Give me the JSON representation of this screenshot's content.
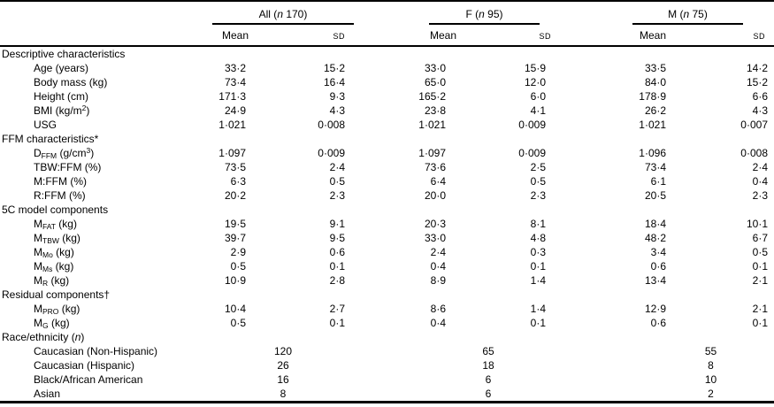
{
  "table": {
    "groups": [
      {
        "parts": [
          {
            "t": "All ("
          },
          {
            "t": "n",
            "style": "i"
          },
          {
            "t": " 170)"
          }
        ]
      },
      {
        "parts": [
          {
            "t": "F ("
          },
          {
            "t": "n",
            "style": "i"
          },
          {
            "t": " 95)"
          }
        ]
      },
      {
        "parts": [
          {
            "t": "M ("
          },
          {
            "t": "n",
            "style": "i"
          },
          {
            "t": " 75)"
          }
        ]
      }
    ],
    "subheaders": {
      "mean": "Mean",
      "sd": "SD"
    },
    "rows": [
      {
        "type": "section",
        "label": "Descriptive characteristics"
      },
      {
        "type": "data",
        "label": "Age (years)",
        "values": [
          "33·2",
          "15·2",
          "33·0",
          "15·9",
          "33·5",
          "14·2"
        ]
      },
      {
        "type": "data",
        "label": "Body mass (kg)",
        "values": [
          "73·4",
          "16·4",
          "65·0",
          "12·0",
          "84·0",
          "15·2"
        ]
      },
      {
        "type": "data",
        "label": "Height (cm)",
        "values": [
          "171·3",
          "9·3",
          "165·2",
          "6·0",
          "178·9",
          "6·6"
        ]
      },
      {
        "type": "data",
        "parts": [
          {
            "t": "BMI (kg/m"
          },
          {
            "t": "2",
            "style": "sup"
          },
          {
            "t": ")"
          }
        ],
        "values": [
          "24·9",
          "4·3",
          "23·8",
          "4·1",
          "26·2",
          "4·3"
        ]
      },
      {
        "type": "data",
        "label": "USG",
        "values": [
          "1·021",
          "0·008",
          "1·021",
          "0·009",
          "1·021",
          "0·007"
        ]
      },
      {
        "type": "section",
        "label": "FFM characteristics*"
      },
      {
        "type": "data",
        "parts": [
          {
            "t": "D"
          },
          {
            "t": "FFM",
            "style": "sub"
          },
          {
            "t": " (g/cm"
          },
          {
            "t": "3",
            "style": "sup"
          },
          {
            "t": ")"
          }
        ],
        "values": [
          "1·097",
          "0·009",
          "1·097",
          "0·009",
          "1·096",
          "0·008"
        ]
      },
      {
        "type": "data",
        "label": "TBW:FFM (%)",
        "values": [
          "73·5",
          "2·4",
          "73·6",
          "2·5",
          "73·4",
          "2·4"
        ]
      },
      {
        "type": "data",
        "label": "M:FFM (%)",
        "values": [
          "6·3",
          "0·5",
          "6·4",
          "0·5",
          "6·1",
          "0·4"
        ]
      },
      {
        "type": "data",
        "label": "R:FFM (%)",
        "values": [
          "20·2",
          "2·3",
          "20·0",
          "2·3",
          "20·5",
          "2·3"
        ]
      },
      {
        "type": "section",
        "label": "5C model components"
      },
      {
        "type": "data",
        "parts": [
          {
            "t": "M"
          },
          {
            "t": "FAT",
            "style": "sub"
          },
          {
            "t": " (kg)"
          }
        ],
        "values": [
          "19·5",
          "9·1",
          "20·3",
          "8·1",
          "18·4",
          "10·1"
        ]
      },
      {
        "type": "data",
        "parts": [
          {
            "t": "M"
          },
          {
            "t": "TBW",
            "style": "sub"
          },
          {
            "t": " (kg)"
          }
        ],
        "values": [
          "39·7",
          "9·5",
          "33·0",
          "4·8",
          "48·2",
          "6·7"
        ]
      },
      {
        "type": "data",
        "parts": [
          {
            "t": "M"
          },
          {
            "t": "Mo",
            "style": "sub"
          },
          {
            "t": " (kg)"
          }
        ],
        "values": [
          "2·9",
          "0·6",
          "2·4",
          "0·3",
          "3·4",
          "0·5"
        ]
      },
      {
        "type": "data",
        "parts": [
          {
            "t": "M"
          },
          {
            "t": "Ms",
            "style": "sub"
          },
          {
            "t": " (kg)"
          }
        ],
        "values": [
          "0·5",
          "0·1",
          "0·4",
          "0·1",
          "0·6",
          "0·1"
        ]
      },
      {
        "type": "data",
        "parts": [
          {
            "t": "M"
          },
          {
            "t": "R",
            "style": "sub"
          },
          {
            "t": " (kg)"
          }
        ],
        "values": [
          "10·9",
          "2·8",
          "8·9",
          "1·4",
          "13·4",
          "2·1"
        ]
      },
      {
        "type": "section",
        "label": "Residual components†"
      },
      {
        "type": "data",
        "parts": [
          {
            "t": "M"
          },
          {
            "t": "PRO",
            "style": "sub"
          },
          {
            "t": " (kg)"
          }
        ],
        "values": [
          "10·4",
          "2·7",
          "8·6",
          "1·4",
          "12·9",
          "2·1"
        ]
      },
      {
        "type": "data",
        "parts": [
          {
            "t": "M"
          },
          {
            "t": "G",
            "style": "sub"
          },
          {
            "t": " (kg)"
          }
        ],
        "values": [
          "0·5",
          "0·1",
          "0·4",
          "0·1",
          "0·6",
          "0·1"
        ]
      },
      {
        "type": "section",
        "parts": [
          {
            "t": "Race/ethnicity ("
          },
          {
            "t": "n",
            "style": "i"
          },
          {
            "t": ")"
          }
        ]
      },
      {
        "type": "count",
        "label": "Caucasian (Non-Hispanic)",
        "values": [
          "120",
          "65",
          "55"
        ]
      },
      {
        "type": "count",
        "label": "Caucasian (Hispanic)",
        "values": [
          "26",
          "18",
          "8"
        ]
      },
      {
        "type": "count",
        "label": "Black/African American",
        "values": [
          "16",
          "6",
          "10"
        ]
      },
      {
        "type": "count",
        "label": "Asian",
        "values": [
          "8",
          "6",
          "2"
        ]
      }
    ]
  }
}
